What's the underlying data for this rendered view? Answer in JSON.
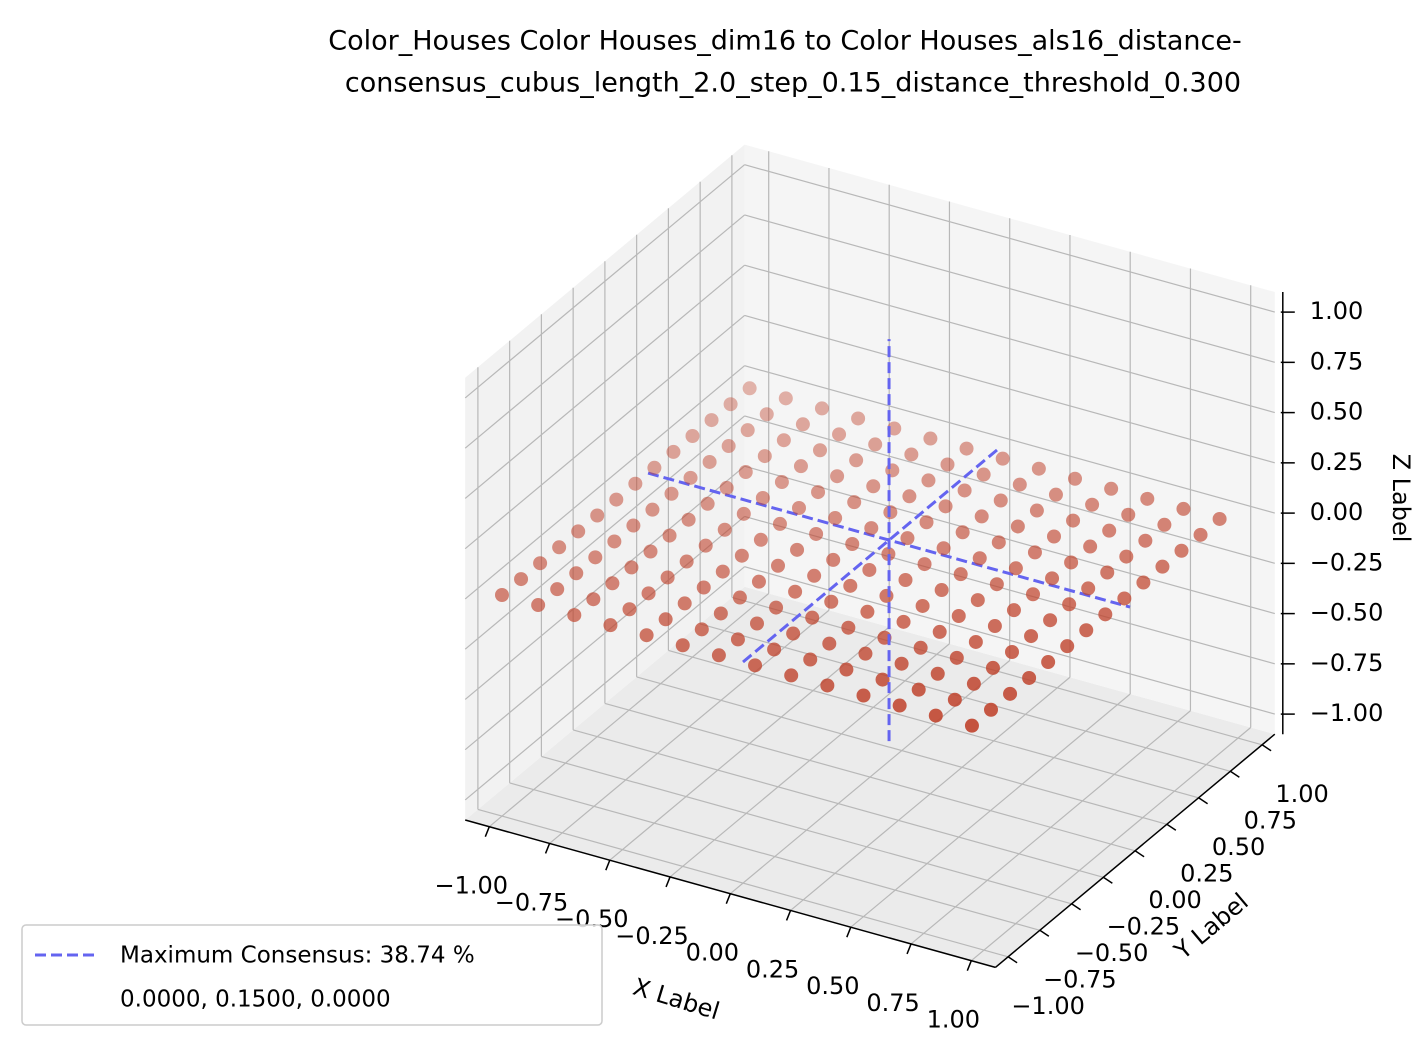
{
  "chart_data": {
    "type": "scatter3d",
    "title": [
      "Color_Houses Color Houses_dim16 to Color Houses_als16_distance-",
      "consensus_cubus_length_2.0_step_0.15_distance_threshold_0.300"
    ],
    "xlabel": "X Label",
    "ylabel": "Y Label",
    "zlabel": "Z Label",
    "xlim": [
      -1.1,
      1.1
    ],
    "ylim": [
      -1.1,
      1.1
    ],
    "zlim": [
      -1.1,
      1.1
    ],
    "xticks": [
      {
        "value": -1,
        "label": "−1.00"
      },
      {
        "value": -0.75,
        "label": "−0.75"
      },
      {
        "value": -0.5,
        "label": "−0.50"
      },
      {
        "value": -0.25,
        "label": "−0.25"
      },
      {
        "value": 0,
        "label": "0.00"
      },
      {
        "value": 0.25,
        "label": "0.25"
      },
      {
        "value": 0.5,
        "label": "0.50"
      },
      {
        "value": 0.75,
        "label": "0.75"
      },
      {
        "value": 1,
        "label": "1.00"
      }
    ],
    "yticks": [
      {
        "value": -1,
        "label": "−1.00"
      },
      {
        "value": -0.75,
        "label": "−0.75"
      },
      {
        "value": -0.5,
        "label": "−0.50"
      },
      {
        "value": -0.25,
        "label": "−0.25"
      },
      {
        "value": 0,
        "label": "0.00"
      },
      {
        "value": 0.25,
        "label": "0.25"
      },
      {
        "value": 0.5,
        "label": "0.50"
      },
      {
        "value": 0.75,
        "label": "0.75"
      },
      {
        "value": 1,
        "label": "1.00"
      }
    ],
    "zticks": [
      {
        "value": -1,
        "label": "−1.00"
      },
      {
        "value": -0.75,
        "label": "−0.75"
      },
      {
        "value": -0.5,
        "label": "−0.50"
      },
      {
        "value": -0.25,
        "label": "−0.25"
      },
      {
        "value": 0,
        "label": "0.00"
      },
      {
        "value": 0.25,
        "label": "0.25"
      },
      {
        "value": 0.5,
        "label": "0.50"
      },
      {
        "value": 0.75,
        "label": "0.75"
      },
      {
        "value": 1,
        "label": "1.00"
      }
    ],
    "grid": true,
    "points": {
      "color": "#c0452f",
      "x": [
        -1,
        -0.85,
        -0.7,
        -0.55,
        -0.4,
        -0.25,
        -0.1,
        0.05,
        0.2,
        0.35,
        0.5,
        0.65,
        0.8,
        0.95
      ],
      "y": [
        -1,
        -0.85,
        -0.7,
        -0.55,
        -0.4,
        -0.25,
        -0.1,
        0.05,
        0.2,
        0.35,
        0.5,
        0.65,
        0.8,
        0.95
      ],
      "z": 0
    },
    "consensus": {
      "name": "Maximum Consensus: 38.74 %",
      "point_label": "0.0000, 0.1500, 0.0000",
      "point": [
        0,
        0.15,
        0
      ],
      "color": "#6464f0"
    },
    "legend": "lower left"
  }
}
